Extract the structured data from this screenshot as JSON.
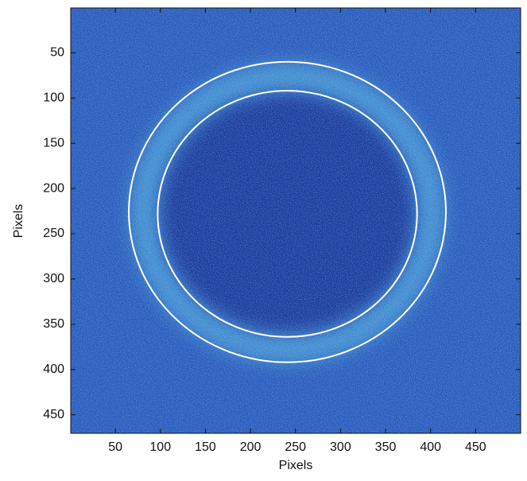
{
  "chart_data": {
    "type": "image",
    "xlabel": "Pixels",
    "ylabel": "Pixels",
    "xlim": [
      0.5,
      500
    ],
    "ylim": [
      0.5,
      470.5
    ],
    "y_reversed": true,
    "xticks": [
      50,
      100,
      150,
      200,
      250,
      300,
      350,
      400,
      450
    ],
    "yticks": [
      50,
      100,
      150,
      200,
      250,
      300,
      350,
      400,
      450
    ],
    "ellipses": [
      {
        "cx": 241,
        "cy": 226,
        "rx": 176,
        "ry": 166,
        "color": "#ffffff"
      },
      {
        "cx": 241,
        "cy": 228,
        "rx": 144,
        "ry": 136,
        "color": "#ffffff"
      }
    ]
  }
}
